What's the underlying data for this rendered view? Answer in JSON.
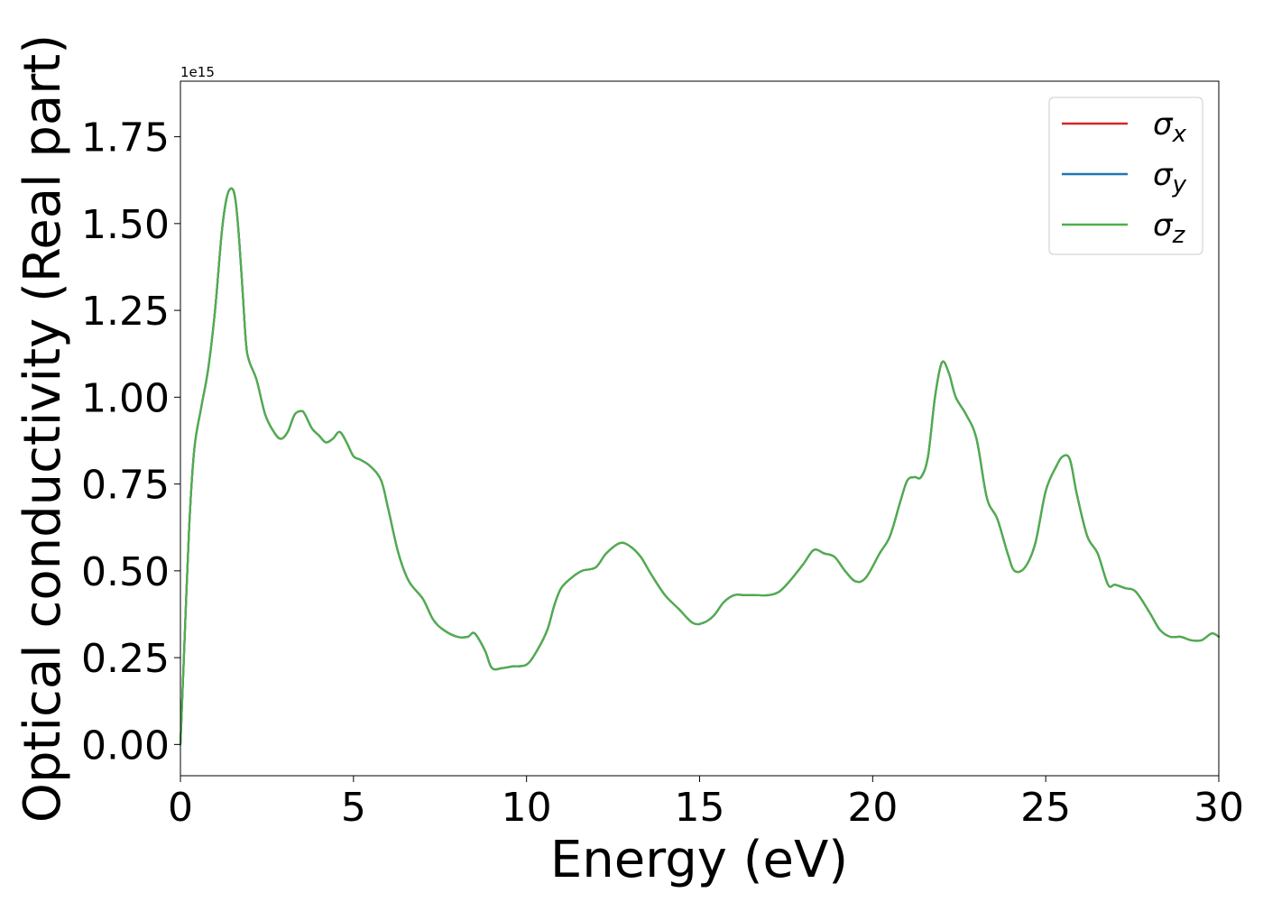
{
  "chart_data": {
    "type": "line",
    "title": "",
    "xlabel": "Energy (eV)",
    "ylabel": "Optical conductivity (Real part)",
    "y_offset_label": "1e15",
    "xlim": [
      0,
      30
    ],
    "ylim": [
      -0.09,
      1.91
    ],
    "y_scale_factor": 1000000000000000.0,
    "x_ticks": [
      0,
      5,
      10,
      15,
      20,
      25,
      30
    ],
    "x_tick_labels": [
      "0",
      "5",
      "10",
      "15",
      "20",
      "25",
      "30"
    ],
    "y_ticks": [
      0,
      0.25,
      0.5,
      0.75,
      1.0,
      1.25,
      1.5,
      1.75
    ],
    "y_tick_labels": [
      "0.00",
      "0.25",
      "0.50",
      "0.75",
      "1.00",
      "1.25",
      "1.50",
      "1.75"
    ],
    "grid": false,
    "legend": {
      "placement": "top-right"
    },
    "x": [
      0,
      0.1,
      0.25,
      0.4,
      0.6,
      0.8,
      1.0,
      1.2,
      1.35,
      1.5,
      1.6,
      1.7,
      1.8,
      1.9,
      2.0,
      2.2,
      2.45,
      2.7,
      2.9,
      3.1,
      3.3,
      3.5,
      3.6,
      3.8,
      4.0,
      4.2,
      4.4,
      4.6,
      4.8,
      5.0,
      5.2,
      5.5,
      5.8,
      6.0,
      6.3,
      6.6,
      7.0,
      7.3,
      7.6,
      8.0,
      8.3,
      8.5,
      8.8,
      9.0,
      9.3,
      9.6,
      10.0,
      10.3,
      10.6,
      10.8,
      11.0,
      11.3,
      11.6,
      12.0,
      12.3,
      12.7,
      13.0,
      13.3,
      13.6,
      14.0,
      14.4,
      14.8,
      15.1,
      15.4,
      15.7,
      16.0,
      16.3,
      16.6,
      17.0,
      17.3,
      17.6,
      18.0,
      18.3,
      18.6,
      18.9,
      19.2,
      19.5,
      19.8,
      20.2,
      20.5,
      20.8,
      21.0,
      21.2,
      21.4,
      21.6,
      21.8,
      22.0,
      22.2,
      22.4,
      22.7,
      23.0,
      23.3,
      23.6,
      23.9,
      24.1,
      24.4,
      24.7,
      25.0,
      25.3,
      25.5,
      25.7,
      25.9,
      26.2,
      26.5,
      26.8,
      27.0,
      27.3,
      27.6,
      28.0,
      28.3,
      28.6,
      28.9,
      29.2,
      29.5,
      29.8,
      30.0
    ],
    "series": [
      {
        "name": "σx",
        "color": "#d62728",
        "values": [
          0.0,
          0.25,
          0.62,
          0.85,
          0.97,
          1.08,
          1.25,
          1.48,
          1.58,
          1.6,
          1.56,
          1.45,
          1.3,
          1.15,
          1.1,
          1.05,
          0.95,
          0.9,
          0.88,
          0.9,
          0.95,
          0.96,
          0.95,
          0.91,
          0.89,
          0.87,
          0.88,
          0.9,
          0.87,
          0.83,
          0.82,
          0.8,
          0.76,
          0.68,
          0.55,
          0.47,
          0.42,
          0.36,
          0.33,
          0.31,
          0.31,
          0.32,
          0.27,
          0.22,
          0.22,
          0.225,
          0.23,
          0.27,
          0.33,
          0.4,
          0.45,
          0.48,
          0.5,
          0.51,
          0.55,
          0.58,
          0.57,
          0.54,
          0.49,
          0.43,
          0.39,
          0.35,
          0.35,
          0.37,
          0.41,
          0.43,
          0.43,
          0.43,
          0.43,
          0.44,
          0.47,
          0.52,
          0.56,
          0.55,
          0.54,
          0.5,
          0.47,
          0.48,
          0.55,
          0.6,
          0.7,
          0.76,
          0.77,
          0.77,
          0.83,
          1.0,
          1.1,
          1.07,
          1.0,
          0.95,
          0.88,
          0.71,
          0.65,
          0.55,
          0.5,
          0.51,
          0.58,
          0.73,
          0.8,
          0.83,
          0.82,
          0.72,
          0.6,
          0.55,
          0.46,
          0.46,
          0.45,
          0.44,
          0.38,
          0.33,
          0.31,
          0.31,
          0.3,
          0.3,
          0.32,
          0.31
        ]
      },
      {
        "name": "σy",
        "color": "#1f77b4",
        "values": [
          0.0,
          0.25,
          0.62,
          0.85,
          0.97,
          1.08,
          1.25,
          1.48,
          1.58,
          1.6,
          1.56,
          1.45,
          1.3,
          1.15,
          1.1,
          1.05,
          0.95,
          0.9,
          0.88,
          0.9,
          0.95,
          0.96,
          0.95,
          0.91,
          0.89,
          0.87,
          0.88,
          0.9,
          0.87,
          0.83,
          0.82,
          0.8,
          0.76,
          0.68,
          0.55,
          0.47,
          0.42,
          0.36,
          0.33,
          0.31,
          0.31,
          0.32,
          0.27,
          0.22,
          0.22,
          0.225,
          0.23,
          0.27,
          0.33,
          0.4,
          0.45,
          0.48,
          0.5,
          0.51,
          0.55,
          0.58,
          0.57,
          0.54,
          0.49,
          0.43,
          0.39,
          0.35,
          0.35,
          0.37,
          0.41,
          0.43,
          0.43,
          0.43,
          0.43,
          0.44,
          0.47,
          0.52,
          0.56,
          0.55,
          0.54,
          0.5,
          0.47,
          0.48,
          0.55,
          0.6,
          0.7,
          0.76,
          0.77,
          0.77,
          0.83,
          1.0,
          1.1,
          1.07,
          1.0,
          0.95,
          0.88,
          0.71,
          0.65,
          0.55,
          0.5,
          0.51,
          0.58,
          0.73,
          0.8,
          0.83,
          0.82,
          0.72,
          0.6,
          0.55,
          0.46,
          0.46,
          0.45,
          0.44,
          0.38,
          0.33,
          0.31,
          0.31,
          0.3,
          0.3,
          0.32,
          0.31
        ]
      },
      {
        "name": "σz",
        "color": "#4daf4a",
        "values": [
          0.0,
          0.25,
          0.62,
          0.85,
          0.97,
          1.08,
          1.25,
          1.48,
          1.58,
          1.6,
          1.56,
          1.45,
          1.3,
          1.15,
          1.1,
          1.05,
          0.95,
          0.9,
          0.88,
          0.9,
          0.95,
          0.96,
          0.95,
          0.91,
          0.89,
          0.87,
          0.88,
          0.9,
          0.87,
          0.83,
          0.82,
          0.8,
          0.76,
          0.68,
          0.55,
          0.47,
          0.42,
          0.36,
          0.33,
          0.31,
          0.31,
          0.32,
          0.27,
          0.22,
          0.22,
          0.225,
          0.23,
          0.27,
          0.33,
          0.4,
          0.45,
          0.48,
          0.5,
          0.51,
          0.55,
          0.58,
          0.57,
          0.54,
          0.49,
          0.43,
          0.39,
          0.35,
          0.35,
          0.37,
          0.41,
          0.43,
          0.43,
          0.43,
          0.43,
          0.44,
          0.47,
          0.52,
          0.56,
          0.55,
          0.54,
          0.5,
          0.47,
          0.48,
          0.55,
          0.6,
          0.7,
          0.76,
          0.77,
          0.77,
          0.83,
          1.0,
          1.1,
          1.07,
          1.0,
          0.95,
          0.88,
          0.71,
          0.65,
          0.55,
          0.5,
          0.51,
          0.58,
          0.73,
          0.8,
          0.83,
          0.82,
          0.72,
          0.6,
          0.55,
          0.46,
          0.46,
          0.45,
          0.44,
          0.38,
          0.33,
          0.31,
          0.31,
          0.3,
          0.3,
          0.32,
          0.31
        ]
      }
    ]
  }
}
